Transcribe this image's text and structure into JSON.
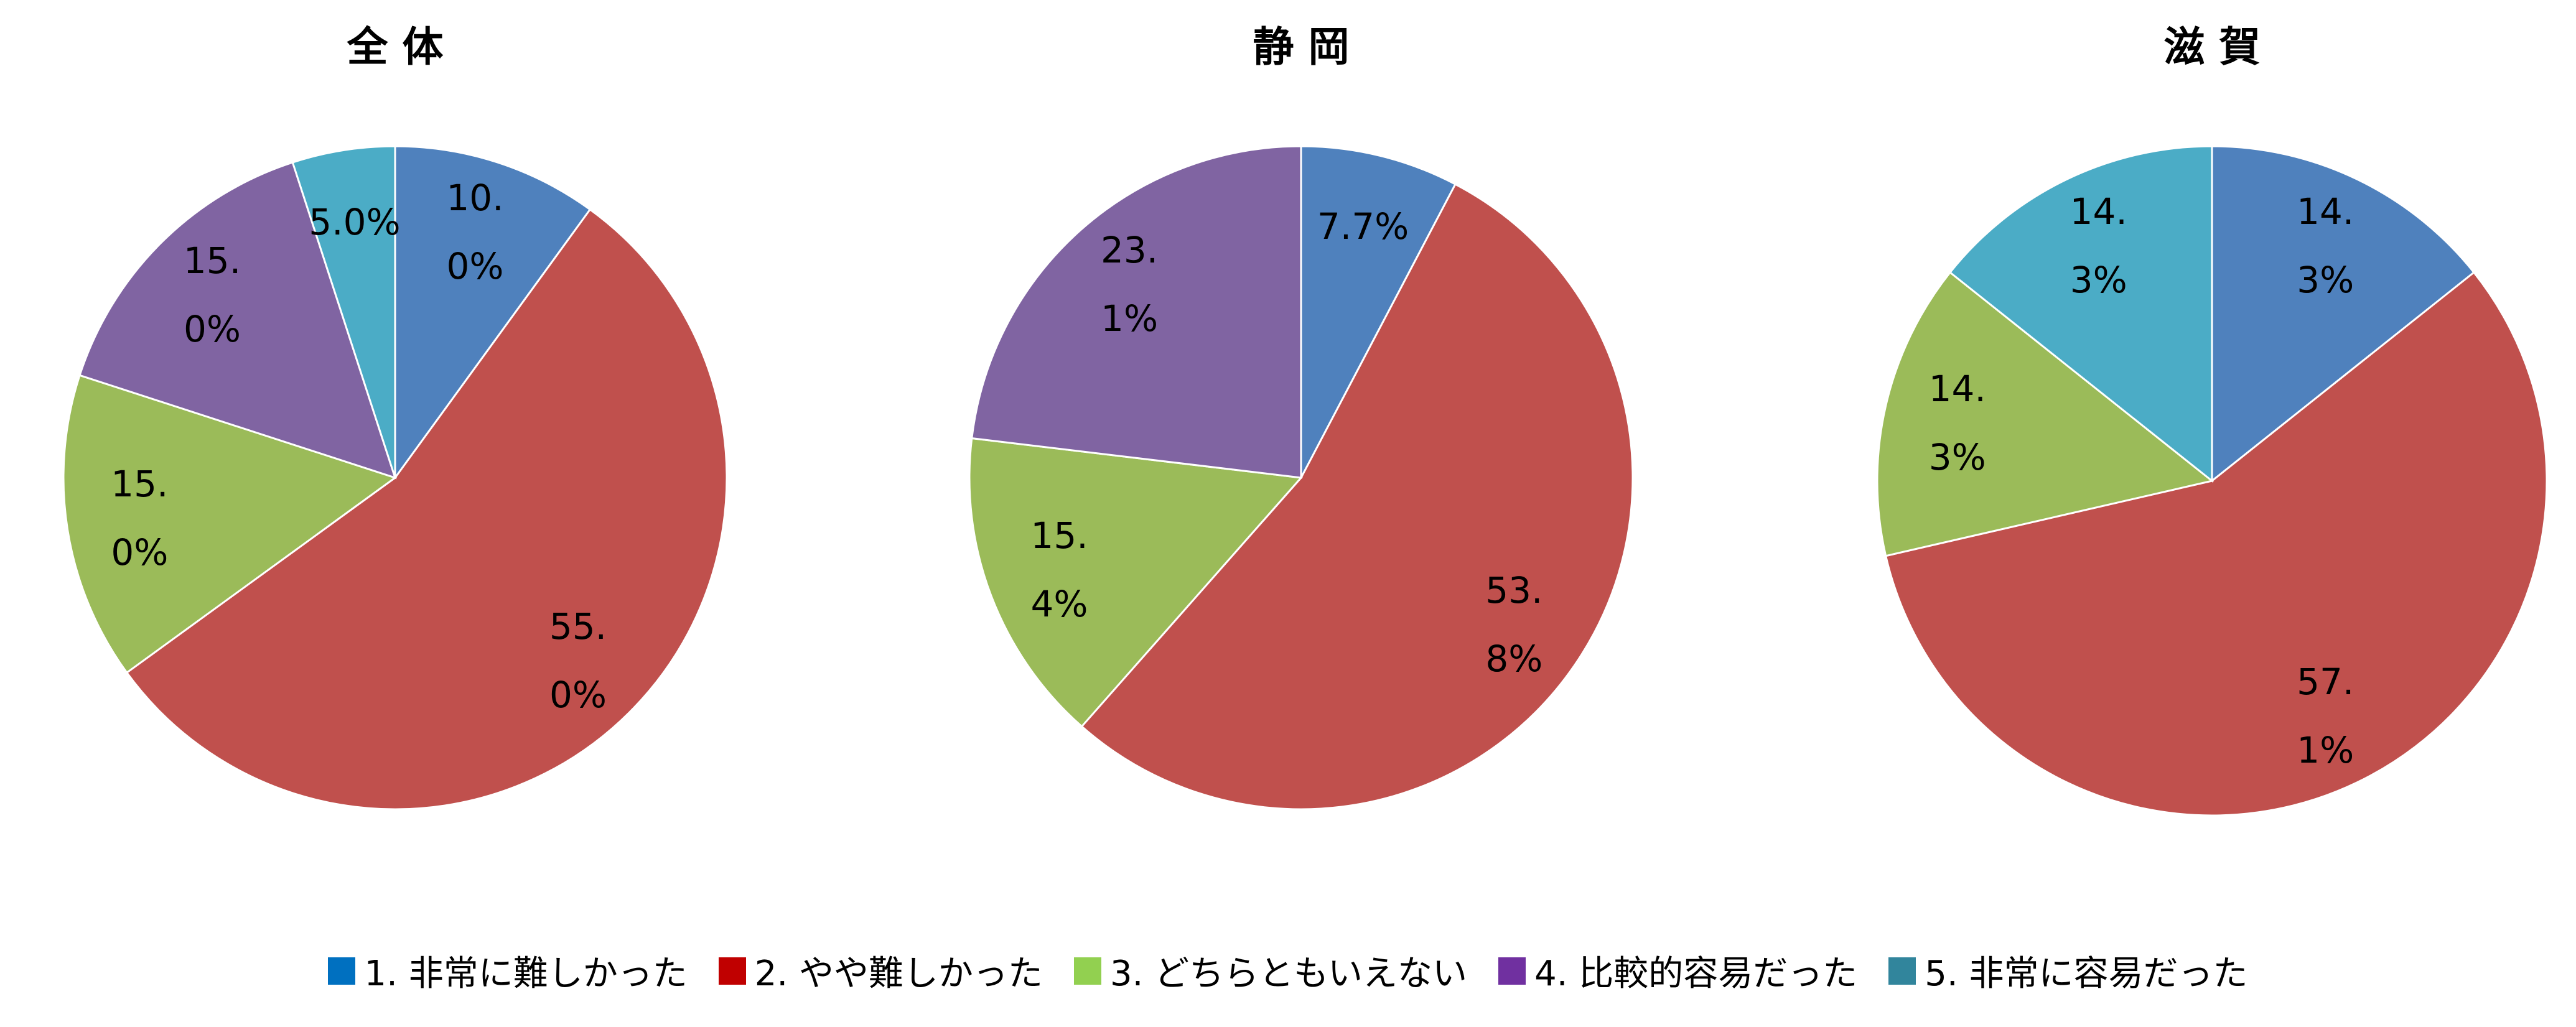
{
  "chart_data": [
    {
      "type": "pie",
      "title": "全 体",
      "categories": [
        "1.  非常に難しかった",
        "2.  やや難しかった",
        "3. どちらともいえない",
        "4. 比較的容易だった",
        "5.  非常に容易だった"
      ],
      "values": [
        10.0,
        55.0,
        15.0,
        15.0,
        5.0
      ],
      "value_labels": [
        "10.0%",
        "55.0%",
        "15.0%",
        "15.0%",
        "5.0%"
      ],
      "colors": [
        "#4f81bd",
        "#c0504d",
        "#9bbb59",
        "#8064a2",
        "#4bacc6"
      ]
    },
    {
      "type": "pie",
      "title": "静 岡",
      "categories": [
        "1.  非常に難しかった",
        "2.  やや難しかった",
        "3. どちらともいえない",
        "4. 比較的容易だった",
        "5.  非常に容易だった"
      ],
      "values": [
        7.7,
        53.8,
        15.4,
        23.1,
        0
      ],
      "value_labels": [
        "7.7%",
        "53.8%",
        "15.4%",
        "23.1%",
        null
      ],
      "colors": [
        "#4f81bd",
        "#c0504d",
        "#9bbb59",
        "#8064a2",
        "#4bacc6"
      ]
    },
    {
      "type": "pie",
      "title": "滋 賀",
      "categories": [
        "1.  非常に難しかった",
        "2.  やや難しかった",
        "3. どちらともいえない",
        "4. 比較的容易だった",
        "5.  非常に容易だった"
      ],
      "values": [
        14.3,
        57.1,
        14.3,
        0,
        14.3
      ],
      "value_labels": [
        "14.3%",
        "57.1%",
        "14.3%",
        null,
        "14.3%"
      ],
      "colors": [
        "#4f81bd",
        "#c0504d",
        "#9bbb59",
        "#8064a2",
        "#4bacc6"
      ]
    }
  ],
  "legend_colors": [
    "#0070c0",
    "#c00000",
    "#92d050",
    "#7030a0",
    "#31859c"
  ]
}
